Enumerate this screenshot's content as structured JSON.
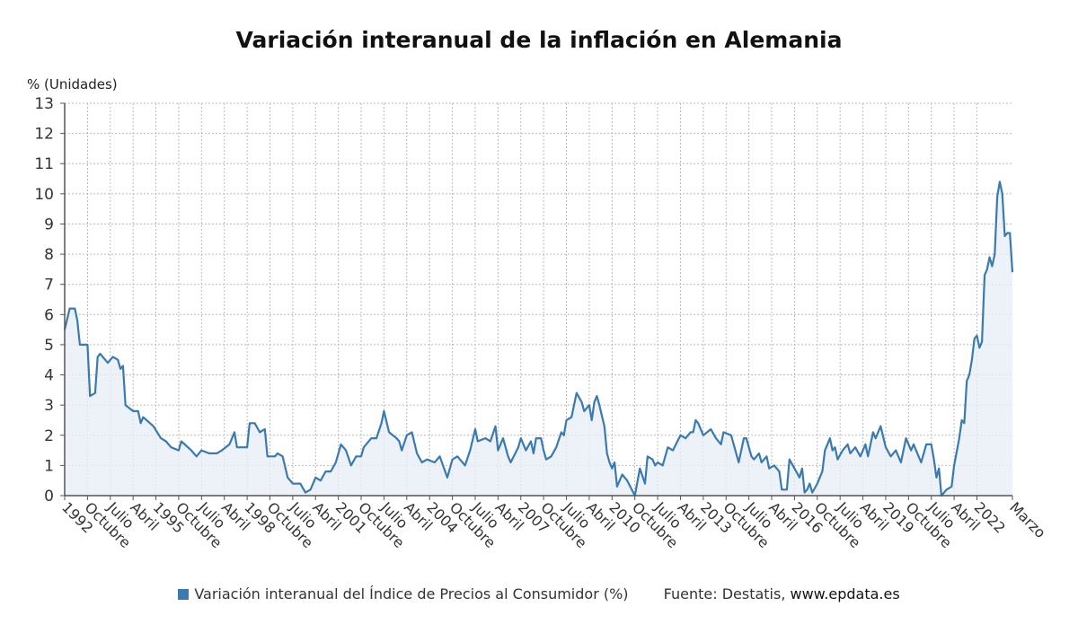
{
  "title": "Variación interanual de la inflación en Alemania",
  "legend": {
    "label": "Variación interanual del Índice de Precios al Consumidor (%)",
    "source_prefix": "Fuente: Destatis,",
    "source_site": "www.epdata.es"
  },
  "colors": {
    "line": "#3a7ab0",
    "fill": "#e8eef6",
    "grid": "#bbbbbb",
    "axis": "#555555"
  },
  "chart_data": {
    "type": "area",
    "title": "Variación interanual de la inflación en Alemania",
    "ylabel": "% (Unidades)",
    "xlabel": "",
    "ylim": [
      0,
      13
    ],
    "yticks": [
      0,
      1,
      2,
      3,
      4,
      5,
      6,
      7,
      8,
      9,
      10,
      11,
      12,
      13
    ],
    "grid": true,
    "legend_position": "bottom",
    "x_start": "1992-01",
    "x_end": "2023-03",
    "xtick_labels": [
      "1992",
      "Octubre",
      "Julio",
      "Abril",
      "1995",
      "Octubre",
      "Julio",
      "Abril",
      "1998",
      "Octubre",
      "Julio",
      "Abril",
      "2001",
      "Octubre",
      "Julio",
      "Abril",
      "2004",
      "Octubre",
      "Julio",
      "Abril",
      "2007",
      "Octubre",
      "Julio",
      "Abril",
      "2010",
      "Octubre",
      "Julio",
      "Abril",
      "2013",
      "Octubre",
      "Julio",
      "Abril",
      "2016",
      "Octubre",
      "Julio",
      "Abril",
      "2019",
      "Octubre",
      "Julio",
      "Abril",
      "2022",
      "Marzo"
    ],
    "series": [
      {
        "name": "Variación interanual del Índice de Precios al Consumidor (%)",
        "points": [
          [
            "1992-01",
            5.5
          ],
          [
            "1992-03",
            6.2
          ],
          [
            "1992-05",
            6.2
          ],
          [
            "1992-06",
            5.8
          ],
          [
            "1992-07",
            5.0
          ],
          [
            "1992-10",
            5.0
          ],
          [
            "1992-11",
            3.3
          ],
          [
            "1993-01",
            3.4
          ],
          [
            "1993-02",
            4.6
          ],
          [
            "1993-03",
            4.7
          ],
          [
            "1993-06",
            4.4
          ],
          [
            "1993-08",
            4.6
          ],
          [
            "1993-10",
            4.5
          ],
          [
            "1993-11",
            4.2
          ],
          [
            "1993-12",
            4.3
          ],
          [
            "1994-01",
            3.0
          ],
          [
            "1994-04",
            2.8
          ],
          [
            "1994-06",
            2.8
          ],
          [
            "1994-07",
            2.4
          ],
          [
            "1994-08",
            2.6
          ],
          [
            "1994-12",
            2.3
          ],
          [
            "1995-03",
            1.9
          ],
          [
            "1995-05",
            1.8
          ],
          [
            "1995-07",
            1.6
          ],
          [
            "1995-10",
            1.5
          ],
          [
            "1995-11",
            1.8
          ],
          [
            "1996-03",
            1.5
          ],
          [
            "1996-05",
            1.3
          ],
          [
            "1996-07",
            1.5
          ],
          [
            "1996-10",
            1.4
          ],
          [
            "1997-01",
            1.4
          ],
          [
            "1997-03",
            1.5
          ],
          [
            "1997-06",
            1.7
          ],
          [
            "1997-08",
            2.1
          ],
          [
            "1997-09",
            1.6
          ],
          [
            "1998-01",
            1.6
          ],
          [
            "1998-02",
            2.4
          ],
          [
            "1998-04",
            2.4
          ],
          [
            "1998-06",
            2.1
          ],
          [
            "1998-08",
            2.2
          ],
          [
            "1998-09",
            1.3
          ],
          [
            "1998-12",
            1.3
          ],
          [
            "1999-01",
            1.4
          ],
          [
            "1999-03",
            1.3
          ],
          [
            "1999-05",
            0.6
          ],
          [
            "1999-07",
            0.4
          ],
          [
            "1999-10",
            0.4
          ],
          [
            "1999-12",
            0.1
          ],
          [
            "2000-02",
            0.2
          ],
          [
            "2000-04",
            0.6
          ],
          [
            "2000-06",
            0.5
          ],
          [
            "2000-08",
            0.8
          ],
          [
            "2000-10",
            0.8
          ],
          [
            "2000-12",
            1.1
          ],
          [
            "2001-02",
            1.7
          ],
          [
            "2001-04",
            1.5
          ],
          [
            "2001-06",
            1.0
          ],
          [
            "2001-08",
            1.3
          ],
          [
            "2001-10",
            1.3
          ],
          [
            "2001-11",
            1.6
          ],
          [
            "2002-02",
            1.9
          ],
          [
            "2002-04",
            1.9
          ],
          [
            "2002-06",
            2.4
          ],
          [
            "2002-07",
            2.8
          ],
          [
            "2002-09",
            2.1
          ],
          [
            "2002-12",
            1.9
          ],
          [
            "2003-01",
            1.8
          ],
          [
            "2003-02",
            1.5
          ],
          [
            "2003-04",
            2.0
          ],
          [
            "2003-06",
            2.1
          ],
          [
            "2003-08",
            1.4
          ],
          [
            "2003-10",
            1.1
          ],
          [
            "2003-12",
            1.2
          ],
          [
            "2004-03",
            1.1
          ],
          [
            "2004-05",
            1.3
          ],
          [
            "2004-08",
            0.6
          ],
          [
            "2004-10",
            1.2
          ],
          [
            "2004-12",
            1.3
          ],
          [
            "2005-03",
            1.0
          ],
          [
            "2005-05",
            1.5
          ],
          [
            "2005-07",
            2.2
          ],
          [
            "2005-08",
            1.8
          ],
          [
            "2005-11",
            1.9
          ],
          [
            "2006-01",
            1.8
          ],
          [
            "2006-03",
            2.3
          ],
          [
            "2006-04",
            1.5
          ],
          [
            "2006-06",
            1.9
          ],
          [
            "2006-08",
            1.3
          ],
          [
            "2006-09",
            1.1
          ],
          [
            "2006-12",
            1.6
          ],
          [
            "2007-01",
            1.9
          ],
          [
            "2007-03",
            1.5
          ],
          [
            "2007-05",
            1.8
          ],
          [
            "2007-06",
            1.4
          ],
          [
            "2007-07",
            1.9
          ],
          [
            "2007-09",
            1.9
          ],
          [
            "2007-10",
            1.5
          ],
          [
            "2007-11",
            1.2
          ],
          [
            "2008-01",
            1.3
          ],
          [
            "2008-03",
            1.6
          ],
          [
            "2008-05",
            2.1
          ],
          [
            "2008-06",
            2.0
          ],
          [
            "2008-07",
            2.5
          ],
          [
            "2008-09",
            2.6
          ],
          [
            "2008-10",
            3.0
          ],
          [
            "2008-11",
            3.4
          ],
          [
            "2009-01",
            3.1
          ],
          [
            "2009-02",
            2.8
          ],
          [
            "2009-04",
            3.0
          ],
          [
            "2009-05",
            2.5
          ],
          [
            "2009-06",
            3.1
          ],
          [
            "2009-07",
            3.3
          ],
          [
            "2009-08",
            3.0
          ],
          [
            "2009-10",
            2.3
          ],
          [
            "2009-11",
            1.4
          ],
          [
            "2009-12",
            1.1
          ],
          [
            "2010-01",
            0.9
          ],
          [
            "2010-02",
            1.1
          ],
          [
            "2010-03",
            0.3
          ],
          [
            "2010-05",
            0.7
          ],
          [
            "2010-07",
            0.5
          ],
          [
            "2010-10",
            0.0
          ],
          [
            "2010-12",
            0.9
          ],
          [
            "2011-02",
            0.4
          ],
          [
            "2011-03",
            1.3
          ],
          [
            "2011-05",
            1.2
          ],
          [
            "2011-06",
            1.0
          ],
          [
            "2011-07",
            1.1
          ],
          [
            "2011-09",
            1.0
          ],
          [
            "2011-11",
            1.6
          ],
          [
            "2012-01",
            1.5
          ],
          [
            "2012-04",
            2.0
          ],
          [
            "2012-06",
            1.9
          ],
          [
            "2012-08",
            2.1
          ],
          [
            "2012-09",
            2.1
          ],
          [
            "2012-10",
            2.5
          ],
          [
            "2012-11",
            2.4
          ],
          [
            "2013-01",
            2.0
          ],
          [
            "2013-04",
            2.2
          ],
          [
            "2013-06",
            1.9
          ],
          [
            "2013-08",
            1.7
          ],
          [
            "2013-09",
            2.1
          ],
          [
            "2013-12",
            2.0
          ],
          [
            "2014-02",
            1.4
          ],
          [
            "2014-03",
            1.1
          ],
          [
            "2014-05",
            1.9
          ],
          [
            "2014-06",
            1.9
          ],
          [
            "2014-08",
            1.3
          ],
          [
            "2014-09",
            1.2
          ],
          [
            "2014-11",
            1.4
          ],
          [
            "2014-12",
            1.1
          ],
          [
            "2015-02",
            1.3
          ],
          [
            "2015-03",
            0.9
          ],
          [
            "2015-05",
            1.0
          ],
          [
            "2015-07",
            0.8
          ],
          [
            "2015-08",
            0.2
          ],
          [
            "2015-10",
            0.2
          ],
          [
            "2015-11",
            1.2
          ],
          [
            "2016-01",
            0.9
          ],
          [
            "2016-03",
            0.6
          ],
          [
            "2016-04",
            0.9
          ],
          [
            "2016-05",
            0.1
          ],
          [
            "2016-06",
            0.2
          ],
          [
            "2016-07",
            0.4
          ],
          [
            "2016-08",
            0.1
          ],
          [
            "2016-10",
            0.4
          ],
          [
            "2016-12",
            0.8
          ],
          [
            "2017-01",
            1.5
          ],
          [
            "2017-02",
            1.7
          ],
          [
            "2017-03",
            1.9
          ],
          [
            "2017-04",
            1.5
          ],
          [
            "2017-05",
            1.6
          ],
          [
            "2017-06",
            1.2
          ],
          [
            "2017-08",
            1.5
          ],
          [
            "2017-10",
            1.7
          ],
          [
            "2017-11",
            1.4
          ],
          [
            "2018-01",
            1.6
          ],
          [
            "2018-03",
            1.3
          ],
          [
            "2018-05",
            1.7
          ],
          [
            "2018-06",
            1.3
          ],
          [
            "2018-08",
            2.1
          ],
          [
            "2018-09",
            1.9
          ],
          [
            "2018-11",
            2.3
          ],
          [
            "2019-01",
            1.6
          ],
          [
            "2019-03",
            1.3
          ],
          [
            "2019-05",
            1.5
          ],
          [
            "2019-07",
            1.1
          ],
          [
            "2019-09",
            1.9
          ],
          [
            "2019-11",
            1.5
          ],
          [
            "2019-12",
            1.7
          ],
          [
            "2020-03",
            1.1
          ],
          [
            "2020-05",
            1.7
          ],
          [
            "2020-07",
            1.7
          ],
          [
            "2020-08",
            1.2
          ],
          [
            "2020-09",
            0.6
          ],
          [
            "2020-10",
            0.9
          ],
          [
            "2020-11",
            0.0
          ],
          [
            "2021-01",
            0.2
          ],
          [
            "2021-03",
            0.3
          ],
          [
            "2021-04",
            1.0
          ],
          [
            "2021-06",
            1.9
          ],
          [
            "2021-07",
            2.5
          ],
          [
            "2021-08",
            2.4
          ],
          [
            "2021-09",
            3.8
          ],
          [
            "2021-10",
            4.0
          ],
          [
            "2021-11",
            4.5
          ],
          [
            "2021-12",
            5.2
          ],
          [
            "2022-01",
            5.3
          ],
          [
            "2022-02",
            4.9
          ],
          [
            "2022-03",
            5.1
          ],
          [
            "2022-04",
            7.3
          ],
          [
            "2022-05",
            7.5
          ],
          [
            "2022-06",
            7.9
          ],
          [
            "2022-07",
            7.6
          ],
          [
            "2022-08",
            8.0
          ],
          [
            "2022-09",
            9.9
          ],
          [
            "2022-10",
            10.4
          ],
          [
            "2022-11",
            10.0
          ],
          [
            "2022-12",
            8.6
          ],
          [
            "2023-01",
            8.7
          ],
          [
            "2023-02",
            8.7
          ],
          [
            "2023-03",
            7.4
          ]
        ]
      }
    ]
  }
}
